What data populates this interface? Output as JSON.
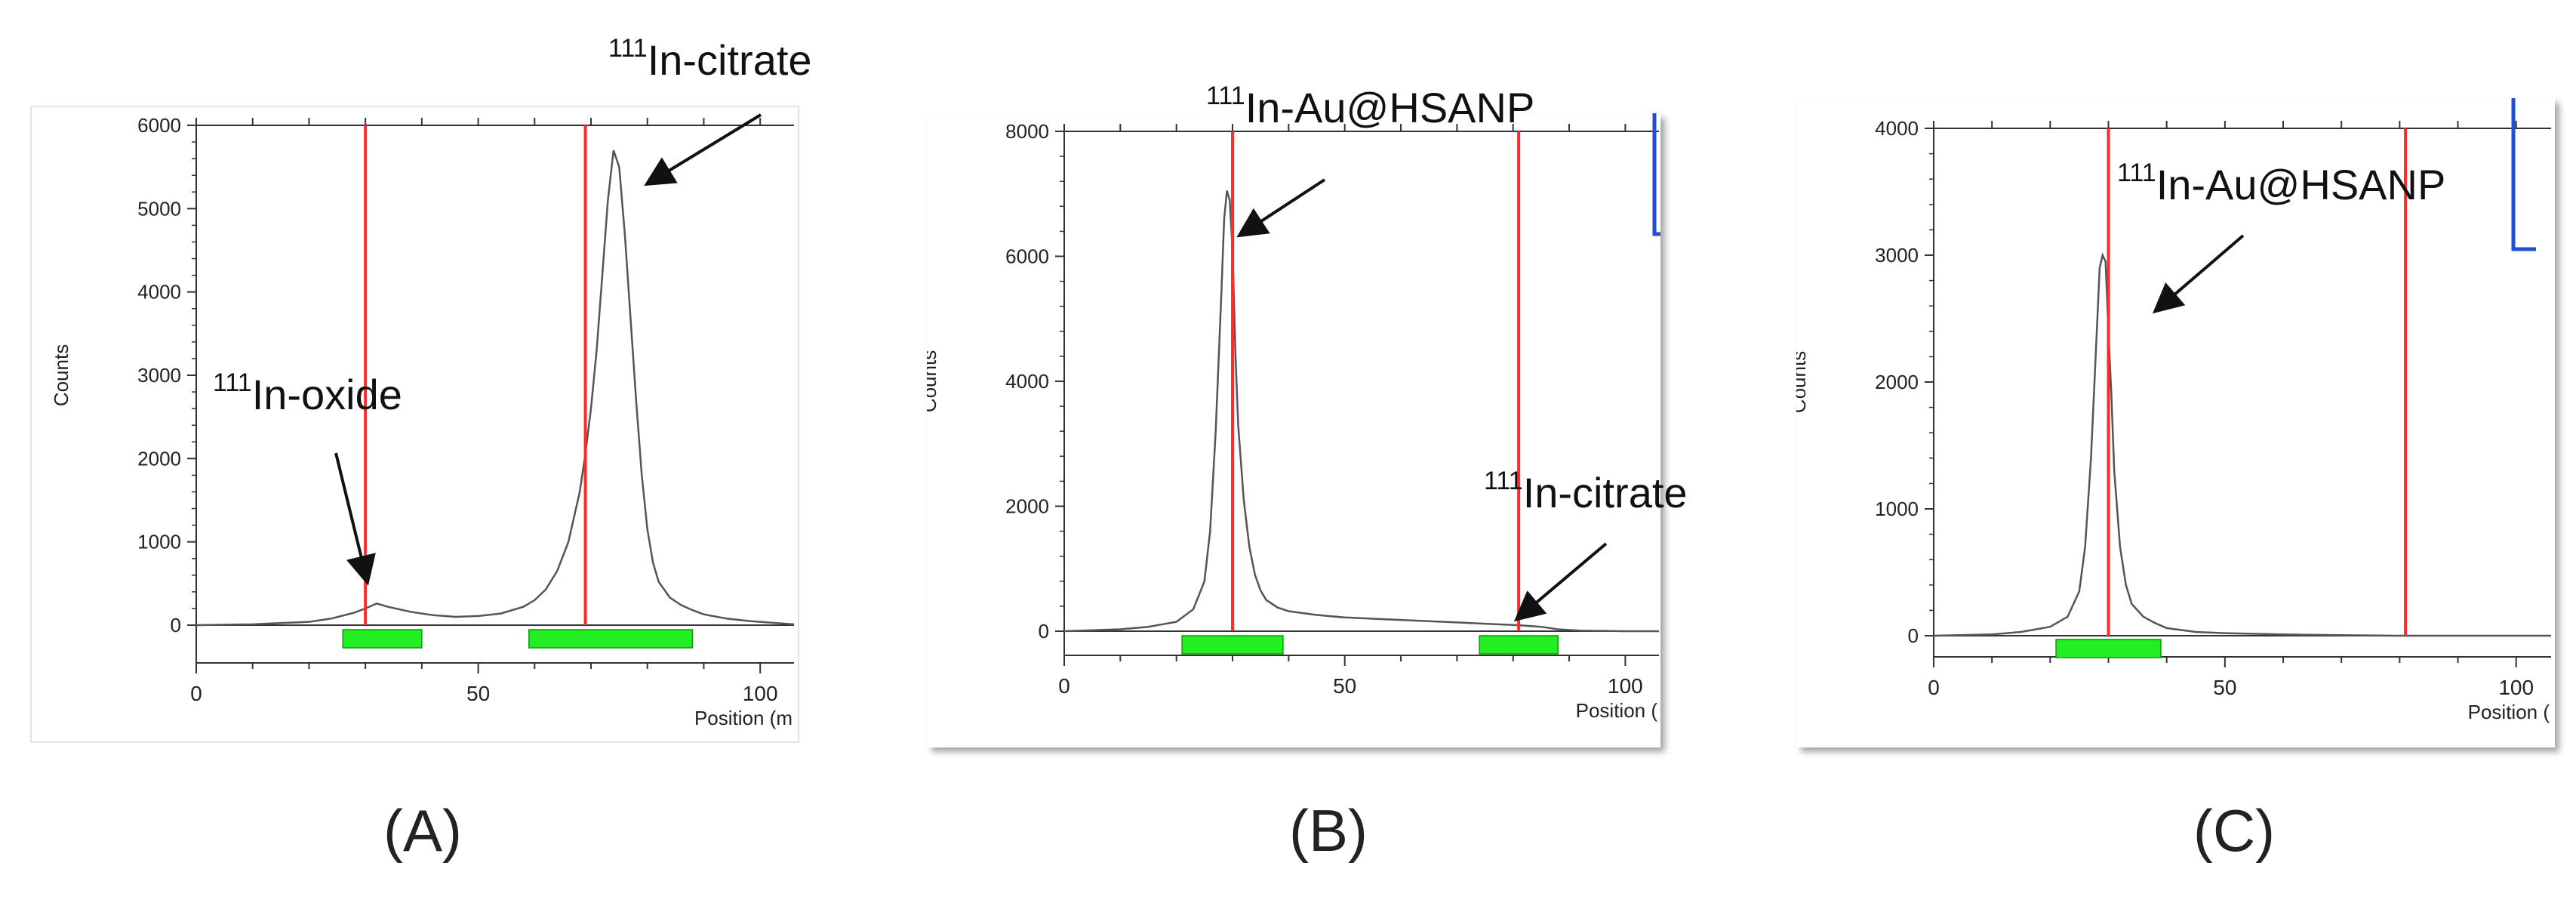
{
  "panels": [
    {
      "label": "(A)",
      "ylabel": "Counts",
      "xlabel": "Position (m",
      "ylim": [
        0,
        6000
      ],
      "yticks": [
        0,
        1000,
        2000,
        3000,
        4000,
        5000,
        6000
      ],
      "ytick_labels": [
        "0",
        "1000",
        "2000",
        "3000",
        "4000",
        "5000",
        "6000"
      ],
      "xlim": [
        0,
        106
      ],
      "xticks": [
        0,
        50,
        100
      ],
      "xtick_labels": [
        "0",
        "50",
        "100"
      ],
      "markers": [
        30,
        69
      ],
      "regions": [
        [
          26,
          40
        ],
        [
          59,
          88
        ]
      ],
      "callouts": [
        {
          "sup": "111",
          "text": "In-oxide"
        },
        {
          "sup": "111",
          "text": "In-citrate"
        }
      ]
    },
    {
      "label": "(B)",
      "ylabel": "Counts",
      "xlabel": "Position (",
      "ylim": [
        0,
        8000
      ],
      "yticks": [
        0,
        2000,
        4000,
        6000,
        8000
      ],
      "ytick_labels": [
        "0",
        "2000",
        "4000",
        "6000",
        "8000"
      ],
      "xlim": [
        0,
        106
      ],
      "xticks": [
        0,
        50,
        100
      ],
      "xtick_labels": [
        "0",
        "50",
        "100"
      ],
      "markers": [
        30,
        81
      ],
      "regions": [
        [
          21,
          39
        ],
        [
          74,
          88
        ]
      ],
      "callouts": [
        {
          "sup": "111",
          "text": "In-Au@HSANP"
        },
        {
          "sup": "111",
          "text": "In-citrate"
        }
      ]
    },
    {
      "label": "(C)",
      "ylabel": "Counts",
      "xlabel": "Position (",
      "ylim": [
        0,
        4000
      ],
      "yticks": [
        0,
        1000,
        2000,
        3000,
        4000
      ],
      "ytick_labels": [
        "0",
        "1000",
        "2000",
        "3000",
        "4000"
      ],
      "xlim": [
        0,
        106
      ],
      "xticks": [
        0,
        50,
        100
      ],
      "xtick_labels": [
        "0",
        "50",
        "100"
      ],
      "markers": [
        30,
        81
      ],
      "regions": [
        [
          21,
          39
        ]
      ],
      "callouts": [
        {
          "sup": "111",
          "text": "In-Au@HSANP"
        }
      ]
    }
  ],
  "chart_data": [
    {
      "type": "line",
      "title": "",
      "xlabel": "Position (m",
      "ylabel": "Counts",
      "xlim": [
        0,
        106
      ],
      "ylim": [
        0,
        6000
      ],
      "grid": false,
      "x": [
        0,
        10,
        20,
        24,
        28,
        30,
        32,
        34,
        38,
        42,
        46,
        50,
        54,
        58,
        60,
        62,
        64,
        66,
        68,
        69,
        70,
        71,
        72,
        73,
        74,
        75,
        76,
        77,
        78,
        79,
        80,
        81,
        82,
        84,
        86,
        88,
        90,
        94,
        98,
        102,
        106
      ],
      "y": [
        0,
        10,
        40,
        80,
        150,
        200,
        260,
        220,
        160,
        120,
        100,
        110,
        140,
        220,
        300,
        430,
        650,
        1000,
        1600,
        2050,
        2600,
        3300,
        4200,
        5100,
        5700,
        5500,
        4700,
        3700,
        2700,
        1800,
        1150,
        750,
        520,
        330,
        240,
        180,
        130,
        80,
        50,
        30,
        10
      ]
    },
    {
      "type": "line",
      "title": "",
      "xlabel": "Position (",
      "ylabel": "Counts",
      "xlim": [
        0,
        106
      ],
      "ylim": [
        0,
        8000
      ],
      "grid": false,
      "x": [
        0,
        10,
        15,
        20,
        23,
        25,
        26,
        27,
        28,
        28.5,
        29,
        29.5,
        30,
        30.5,
        31,
        32,
        33,
        34,
        35,
        36,
        38,
        40,
        45,
        50,
        55,
        60,
        65,
        70,
        75,
        80,
        82,
        85,
        88,
        92,
        100,
        106
      ],
      "y": [
        0,
        30,
        70,
        150,
        350,
        800,
        1600,
        3200,
        5400,
        6600,
        7050,
        6900,
        6100,
        4500,
        3300,
        2100,
        1350,
        900,
        650,
        500,
        380,
        320,
        260,
        220,
        200,
        180,
        160,
        140,
        120,
        100,
        90,
        70,
        30,
        10,
        0,
        0
      ]
    },
    {
      "type": "line",
      "title": "",
      "xlabel": "Position (",
      "ylabel": "Counts",
      "xlim": [
        0,
        106
      ],
      "ylim": [
        0,
        4000
      ],
      "grid": false,
      "x": [
        0,
        10,
        15,
        20,
        23,
        25,
        26,
        27,
        28,
        28.5,
        29,
        29.5,
        30,
        30.5,
        31,
        32,
        33,
        34,
        36,
        38,
        40,
        45,
        50,
        60,
        70,
        80,
        90,
        106
      ],
      "y": [
        0,
        10,
        30,
        70,
        150,
        350,
        700,
        1400,
        2400,
        2900,
        3000,
        2950,
        2400,
        1900,
        1300,
        700,
        400,
        250,
        150,
        100,
        60,
        30,
        20,
        10,
        5,
        0,
        0,
        0
      ]
    }
  ],
  "colors": {
    "marker_line": "#ff2a2a",
    "region": "#22ee22",
    "curve": "#555555",
    "axis": "#333333",
    "frame_edge": "#1f4fd6"
  }
}
